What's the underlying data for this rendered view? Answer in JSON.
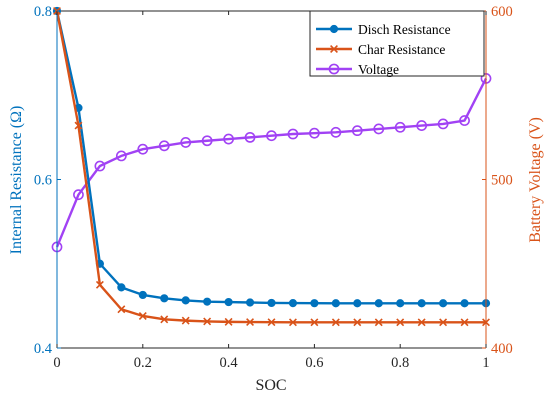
{
  "chart_data": {
    "type": "line",
    "xlabel": "SOC",
    "ylabel_left": "Internal Resistance (Ω)",
    "ylabel_right": "Battery Voltage (V)",
    "xlim": [
      0,
      1
    ],
    "ylim_left": [
      0.4,
      0.8
    ],
    "ylim_right": [
      400,
      600
    ],
    "x_ticks": [
      0,
      0.2,
      0.4,
      0.6,
      0.8,
      1
    ],
    "x_tick_labels": [
      "0",
      "0.2",
      "0.4",
      "0.6",
      "0.8",
      "1"
    ],
    "y_left_ticks": [
      0.4,
      0.6,
      0.8
    ],
    "y_left_tick_labels": [
      "0.4",
      "0.6",
      "0.8"
    ],
    "y_right_ticks": [
      400,
      500,
      600
    ],
    "y_right_tick_labels": [
      "400",
      "500",
      "600"
    ],
    "legend_placement": "top-right",
    "grid": false,
    "x": [
      0,
      0.05,
      0.1,
      0.15,
      0.2,
      0.25,
      0.3,
      0.35,
      0.4,
      0.45,
      0.5,
      0.55,
      0.6,
      0.65,
      0.7,
      0.75,
      0.8,
      0.85,
      0.9,
      0.95,
      1.0
    ],
    "series": [
      {
        "name": "Disch Resistance",
        "axis": "left",
        "color": "#0072BD",
        "marker": "filled-circle",
        "values": [
          0.8,
          0.685,
          0.5,
          0.472,
          0.463,
          0.459,
          0.4565,
          0.455,
          0.4545,
          0.454,
          0.4535,
          0.4533,
          0.4532,
          0.4531,
          0.4531,
          0.4531,
          0.4531,
          0.4531,
          0.4531,
          0.4531,
          0.4531
        ]
      },
      {
        "name": "Char Resistance",
        "axis": "left",
        "color": "#D95319",
        "marker": "x",
        "values": [
          0.8,
          0.664,
          0.475,
          0.446,
          0.438,
          0.434,
          0.4325,
          0.4315,
          0.431,
          0.4308,
          0.4306,
          0.4305,
          0.4305,
          0.4305,
          0.4305,
          0.4305,
          0.4305,
          0.4305,
          0.4305,
          0.4305,
          0.4305
        ]
      },
      {
        "name": "Voltage",
        "axis": "right",
        "color": "#A142F4",
        "marker": "open-circle",
        "values": [
          460,
          491,
          508,
          514,
          518,
          520,
          522,
          523,
          524,
          525,
          526,
          527,
          527.5,
          528,
          529,
          530,
          531,
          532,
          533,
          535,
          560
        ]
      }
    ]
  }
}
